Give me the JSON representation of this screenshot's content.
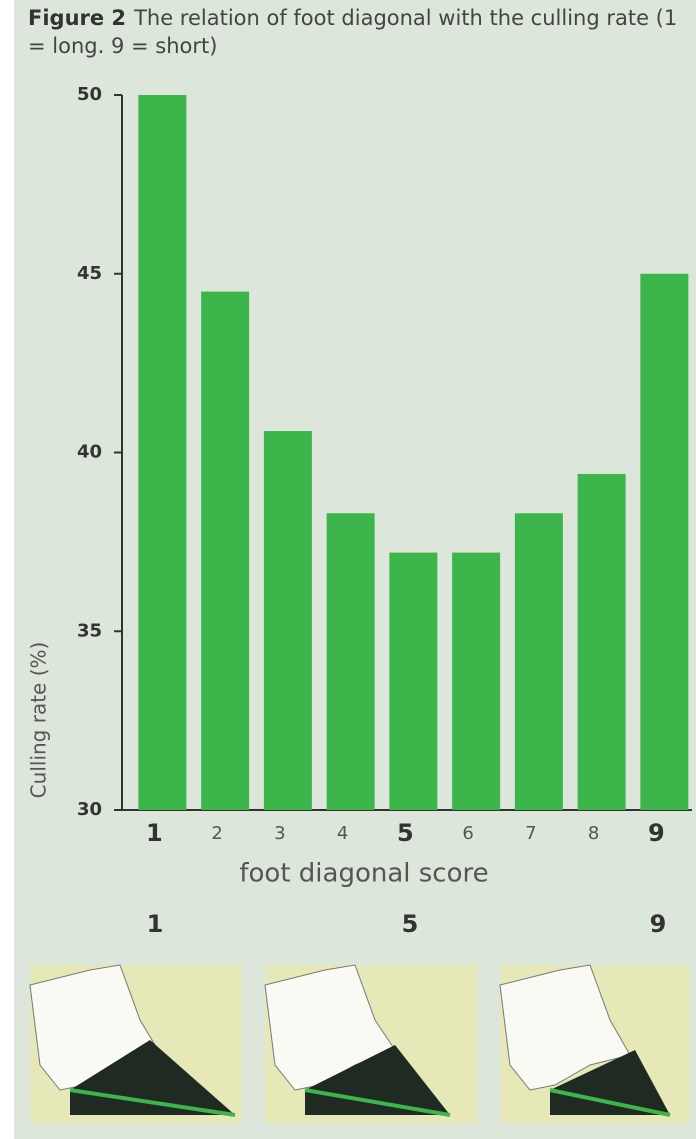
{
  "chart_data": {
    "type": "bar",
    "title": "Figure 2",
    "subtitle": "The relation of foot diagonal with the culling rate (1 = long. 9 = short)",
    "x_label": "foot diagonal score",
    "y_label": "Culling rate (%)",
    "categories": [
      "1",
      "2",
      "3",
      "4",
      "5",
      "6",
      "7",
      "8",
      "9"
    ],
    "values": [
      50,
      44.5,
      40.6,
      38.3,
      37.2,
      37.2,
      38.3,
      39.4,
      45
    ],
    "color": "#3cb54a",
    "ylim": [
      30,
      50
    ],
    "yticks": [
      30,
      35,
      40,
      45,
      50
    ],
    "grid": false
  },
  "illustrations": {
    "labels": [
      "1",
      "5",
      "9"
    ]
  }
}
